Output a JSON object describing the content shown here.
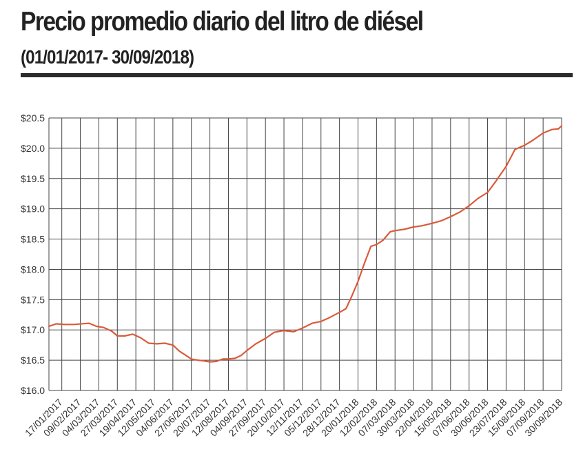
{
  "header": {
    "title": "Precio promedio diario del litro de diésel",
    "subtitle": "(01/01/2017- 30/09/2018)"
  },
  "colors": {
    "line": "#d95b3a",
    "grid": "#444444",
    "text": "#222222",
    "rule": "#2b2b2b"
  },
  "chart_data": {
    "type": "line",
    "title": "Precio promedio diario del litro de diésel",
    "subtitle": "(01/01/2017- 30/09/2018)",
    "xlabel": "",
    "ylabel": "",
    "xlim": [
      "2017-01-01",
      "2018-09-30"
    ],
    "ylim": [
      16.0,
      20.5
    ],
    "grid": true,
    "legend": "none",
    "yticks": [
      16.0,
      16.5,
      17.0,
      17.5,
      18.0,
      18.5,
      19.0,
      19.5,
      20.0,
      20.5
    ],
    "ytick_labels": [
      "$16.0",
      "$16.5",
      "$17.0",
      "$17.5",
      "$18.0",
      "$18.5",
      "$19.0",
      "$19.5",
      "$20.0",
      "$20.5"
    ],
    "xtick_labels": [
      "17/01/2017",
      "09/02/2017",
      "04/03/2017",
      "27/03/2017",
      "19/04/2017",
      "12/05/2017",
      "04/06/2017",
      "27/06/2017",
      "20/07/2017",
      "12/08/2017",
      "04/09/2017",
      "27/09/2017",
      "20/10/2017",
      "12/11/2017",
      "05/12/2017",
      "28/12/2017",
      "20/01/2018",
      "12/02/2018",
      "07/03/2018",
      "30/03/2018",
      "22/04/2018",
      "15/05/2018",
      "07/06/2018",
      "30/06/2018",
      "23/07/2018",
      "15/08/2018",
      "07/09/2018",
      "30/09/2018"
    ],
    "series": [
      {
        "x": [
          "2017-01-01",
          "2017-01-10",
          "2017-01-20",
          "2017-02-01",
          "2017-02-20",
          "2017-03-01",
          "2017-03-10",
          "2017-03-20",
          "2017-03-27",
          "2017-04-05",
          "2017-04-15",
          "2017-04-25",
          "2017-05-05",
          "2017-05-15",
          "2017-05-25",
          "2017-06-04",
          "2017-06-12",
          "2017-06-20",
          "2017-06-27",
          "2017-07-05",
          "2017-07-12",
          "2017-07-20",
          "2017-07-28",
          "2017-08-05",
          "2017-08-12",
          "2017-08-20",
          "2017-08-28",
          "2017-09-04",
          "2017-09-15",
          "2017-09-27",
          "2017-10-08",
          "2017-10-20",
          "2017-11-01",
          "2017-11-12",
          "2017-11-24",
          "2017-12-05",
          "2017-12-15",
          "2017-12-28",
          "2018-01-05",
          "2018-01-12",
          "2018-01-20",
          "2018-01-28",
          "2018-02-05",
          "2018-02-12",
          "2018-02-20",
          "2018-03-01",
          "2018-03-07",
          "2018-03-18",
          "2018-03-30",
          "2018-04-10",
          "2018-04-22",
          "2018-05-03",
          "2018-05-15",
          "2018-05-27",
          "2018-06-07",
          "2018-06-18",
          "2018-06-30",
          "2018-07-10",
          "2018-07-23",
          "2018-08-03",
          "2018-08-15",
          "2018-08-25",
          "2018-09-07",
          "2018-09-18",
          "2018-09-26",
          "2018-09-30"
        ],
        "values": [
          17.06,
          17.1,
          17.09,
          17.09,
          17.11,
          17.06,
          17.04,
          16.98,
          16.9,
          16.9,
          16.93,
          16.87,
          16.78,
          16.77,
          16.78,
          16.75,
          16.65,
          16.58,
          16.52,
          16.5,
          16.49,
          16.47,
          16.48,
          16.52,
          16.52,
          16.53,
          16.58,
          16.66,
          16.77,
          16.86,
          16.96,
          16.99,
          16.97,
          17.03,
          17.11,
          17.14,
          17.2,
          17.29,
          17.35,
          17.55,
          17.8,
          18.1,
          18.38,
          18.41,
          18.48,
          18.62,
          18.64,
          18.66,
          18.7,
          18.72,
          18.76,
          18.8,
          18.87,
          18.95,
          19.05,
          19.17,
          19.27,
          19.45,
          19.7,
          19.98,
          20.05,
          20.13,
          20.25,
          20.31,
          20.32,
          20.37
        ]
      }
    ]
  }
}
